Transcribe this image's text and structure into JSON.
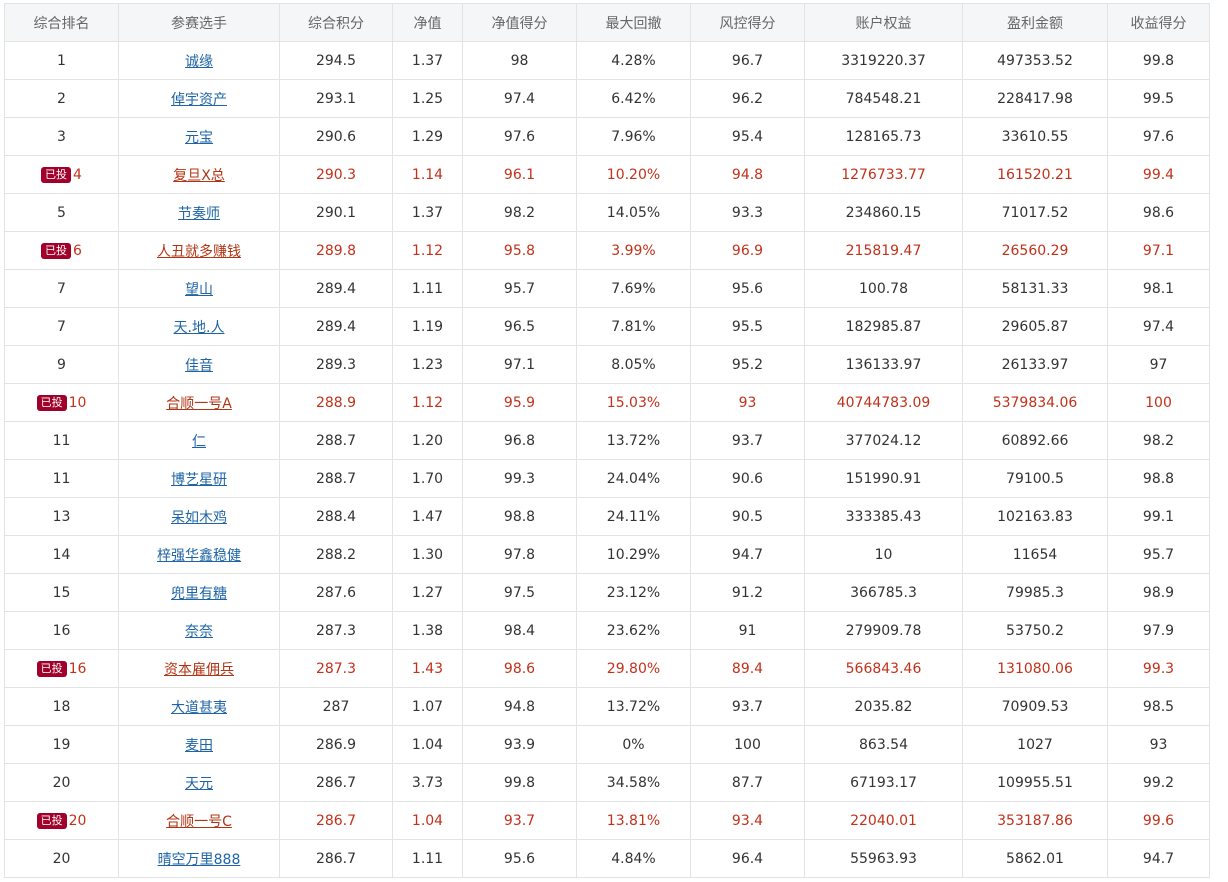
{
  "table": {
    "headers": [
      "综合排名",
      "参赛选手",
      "综合积分",
      "净值",
      "净值得分",
      "最大回撤",
      "风控得分",
      "账户权益",
      "盈利金额",
      "收益得分"
    ],
    "invested_label": "已投",
    "rows": [
      {
        "rank": "1",
        "player": "诚缘",
        "score": "294.5",
        "nav": "1.37",
        "nav_score": "98",
        "max_drawdown": "4.28%",
        "risk_score": "96.7",
        "equity": "3319220.37",
        "profit": "497353.52",
        "return_score": "99.8",
        "invested": false
      },
      {
        "rank": "2",
        "player": "倬宇资产",
        "score": "293.1",
        "nav": "1.25",
        "nav_score": "97.4",
        "max_drawdown": "6.42%",
        "risk_score": "96.2",
        "equity": "784548.21",
        "profit": "228417.98",
        "return_score": "99.5",
        "invested": false
      },
      {
        "rank": "3",
        "player": "元宝",
        "score": "290.6",
        "nav": "1.29",
        "nav_score": "97.6",
        "max_drawdown": "7.96%",
        "risk_score": "95.4",
        "equity": "128165.73",
        "profit": "33610.55",
        "return_score": "97.6",
        "invested": false
      },
      {
        "rank": "4",
        "player": "复旦X总",
        "score": "290.3",
        "nav": "1.14",
        "nav_score": "96.1",
        "max_drawdown": "10.20%",
        "risk_score": "94.8",
        "equity": "1276733.77",
        "profit": "161520.21",
        "return_score": "99.4",
        "invested": true
      },
      {
        "rank": "5",
        "player": "节奏师",
        "score": "290.1",
        "nav": "1.37",
        "nav_score": "98.2",
        "max_drawdown": "14.05%",
        "risk_score": "93.3",
        "equity": "234860.15",
        "profit": "71017.52",
        "return_score": "98.6",
        "invested": false
      },
      {
        "rank": "6",
        "player": "人丑就多赚钱",
        "score": "289.8",
        "nav": "1.12",
        "nav_score": "95.8",
        "max_drawdown": "3.99%",
        "risk_score": "96.9",
        "equity": "215819.47",
        "profit": "26560.29",
        "return_score": "97.1",
        "invested": true
      },
      {
        "rank": "7",
        "player": "望山",
        "score": "289.4",
        "nav": "1.11",
        "nav_score": "95.7",
        "max_drawdown": "7.69%",
        "risk_score": "95.6",
        "equity": "100.78",
        "profit": "58131.33",
        "return_score": "98.1",
        "invested": false
      },
      {
        "rank": "7",
        "player": "天.地.人",
        "score": "289.4",
        "nav": "1.19",
        "nav_score": "96.5",
        "max_drawdown": "7.81%",
        "risk_score": "95.5",
        "equity": "182985.87",
        "profit": "29605.87",
        "return_score": "97.4",
        "invested": false
      },
      {
        "rank": "9",
        "player": "佳音",
        "score": "289.3",
        "nav": "1.23",
        "nav_score": "97.1",
        "max_drawdown": "8.05%",
        "risk_score": "95.2",
        "equity": "136133.97",
        "profit": "26133.97",
        "return_score": "97",
        "invested": false
      },
      {
        "rank": "10",
        "player": "合顺一号A",
        "score": "288.9",
        "nav": "1.12",
        "nav_score": "95.9",
        "max_drawdown": "15.03%",
        "risk_score": "93",
        "equity": "40744783.09",
        "profit": "5379834.06",
        "return_score": "100",
        "invested": true
      },
      {
        "rank": "11",
        "player": "仁",
        "score": "288.7",
        "nav": "1.20",
        "nav_score": "96.8",
        "max_drawdown": "13.72%",
        "risk_score": "93.7",
        "equity": "377024.12",
        "profit": "60892.66",
        "return_score": "98.2",
        "invested": false
      },
      {
        "rank": "11",
        "player": "博艺星研",
        "score": "288.7",
        "nav": "1.70",
        "nav_score": "99.3",
        "max_drawdown": "24.04%",
        "risk_score": "90.6",
        "equity": "151990.91",
        "profit": "79100.5",
        "return_score": "98.8",
        "invested": false
      },
      {
        "rank": "13",
        "player": "呆如木鸡",
        "score": "288.4",
        "nav": "1.47",
        "nav_score": "98.8",
        "max_drawdown": "24.11%",
        "risk_score": "90.5",
        "equity": "333385.43",
        "profit": "102163.83",
        "return_score": "99.1",
        "invested": false
      },
      {
        "rank": "14",
        "player": "梓强华鑫稳健",
        "score": "288.2",
        "nav": "1.30",
        "nav_score": "97.8",
        "max_drawdown": "10.29%",
        "risk_score": "94.7",
        "equity": "10",
        "profit": "11654",
        "return_score": "95.7",
        "invested": false
      },
      {
        "rank": "15",
        "player": "兜里有糖",
        "score": "287.6",
        "nav": "1.27",
        "nav_score": "97.5",
        "max_drawdown": "23.12%",
        "risk_score": "91.2",
        "equity": "366785.3",
        "profit": "79985.3",
        "return_score": "98.9",
        "invested": false
      },
      {
        "rank": "16",
        "player": "奈奈",
        "score": "287.3",
        "nav": "1.38",
        "nav_score": "98.4",
        "max_drawdown": "23.62%",
        "risk_score": "91",
        "equity": "279909.78",
        "profit": "53750.2",
        "return_score": "97.9",
        "invested": false
      },
      {
        "rank": "16",
        "player": "资本雇佣兵",
        "score": "287.3",
        "nav": "1.43",
        "nav_score": "98.6",
        "max_drawdown": "29.80%",
        "risk_score": "89.4",
        "equity": "566843.46",
        "profit": "131080.06",
        "return_score": "99.3",
        "invested": true
      },
      {
        "rank": "18",
        "player": "大道甚夷",
        "score": "287",
        "nav": "1.07",
        "nav_score": "94.8",
        "max_drawdown": "13.72%",
        "risk_score": "93.7",
        "equity": "2035.82",
        "profit": "70909.53",
        "return_score": "98.5",
        "invested": false
      },
      {
        "rank": "19",
        "player": "麦田",
        "score": "286.9",
        "nav": "1.04",
        "nav_score": "93.9",
        "max_drawdown": "0%",
        "risk_score": "100",
        "equity": "863.54",
        "profit": "1027",
        "return_score": "93",
        "invested": false
      },
      {
        "rank": "20",
        "player": "天元",
        "score": "286.7",
        "nav": "3.73",
        "nav_score": "99.8",
        "max_drawdown": "34.58%",
        "risk_score": "87.7",
        "equity": "67193.17",
        "profit": "109955.51",
        "return_score": "99.2",
        "invested": false
      },
      {
        "rank": "20",
        "player": "合顺一号C",
        "score": "286.7",
        "nav": "1.04",
        "nav_score": "93.7",
        "max_drawdown": "13.81%",
        "risk_score": "93.4",
        "equity": "22040.01",
        "profit": "353187.86",
        "return_score": "99.6",
        "invested": true
      },
      {
        "rank": "20",
        "player": "晴空万里888",
        "score": "286.7",
        "nav": "1.11",
        "nav_score": "95.6",
        "max_drawdown": "4.84%",
        "risk_score": "96.4",
        "equity": "55963.93",
        "profit": "5862.01",
        "return_score": "94.7",
        "invested": false
      }
    ]
  }
}
